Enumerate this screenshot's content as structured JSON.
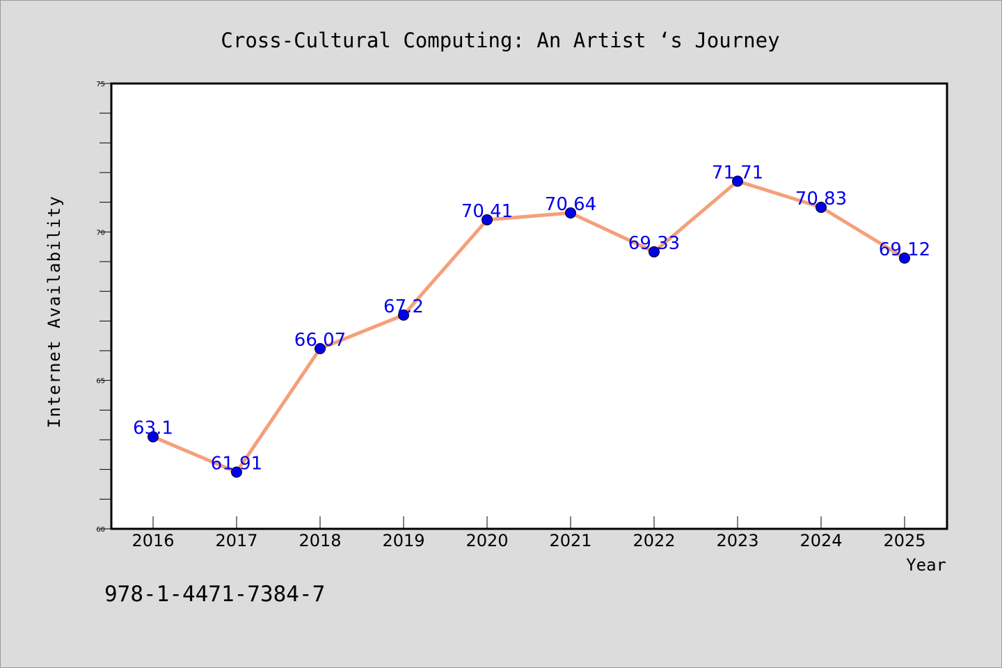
{
  "chart_data": {
    "type": "line",
    "title": "Cross-Cultural Computing: An Artist ‘s Journey",
    "xlabel": "Year",
    "ylabel": "Internet Availability",
    "x": [
      "2016",
      "2017",
      "2018",
      "2019",
      "2020",
      "2021",
      "2022",
      "2023",
      "2024",
      "2025"
    ],
    "series": [
      {
        "values": [
          63.1,
          61.91,
          66.07,
          67.2,
          70.41,
          70.64,
          69.33,
          71.71,
          70.83,
          69.12
        ],
        "data_labels": [
          "63.1",
          "61.91",
          "66.07",
          "67.2",
          "70.41",
          "70.64",
          "69.33",
          "71.71",
          "70.83",
          "69.12"
        ],
        "line_color": "#f4a07a",
        "marker_color": "#0000ee"
      }
    ],
    "ylim": [
      60,
      75
    ],
    "yticks": [
      "60",
      "65",
      "70",
      "75"
    ],
    "grid": false,
    "legend": "none",
    "label_color": "#0000ee"
  },
  "footer": {
    "isbn": "978-1-4471-7384-7"
  }
}
